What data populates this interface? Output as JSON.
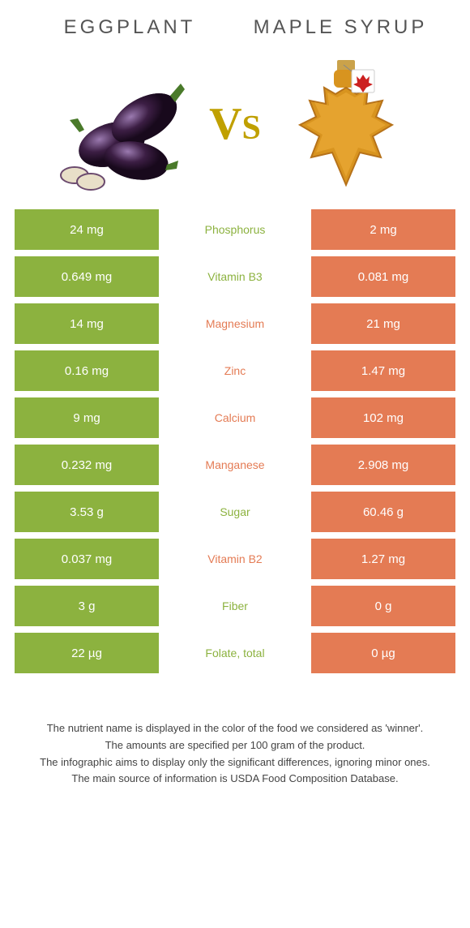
{
  "foodA": {
    "name": "EGGPLANT",
    "color": "#8cb23f"
  },
  "foodB": {
    "name": "MAPLE SYRUP",
    "color": "#e47b54"
  },
  "vs": "VS",
  "structure_type": "comparison-table",
  "colors": {
    "green": "#8cb23f",
    "orange": "#e47b54",
    "bg": "#ffffff",
    "text": "#444444",
    "vs": "#c0a000"
  },
  "rows": [
    {
      "label": "Phosphorus",
      "a": "24 mg",
      "b": "2 mg",
      "winner": "a"
    },
    {
      "label": "Vitamin B3",
      "a": "0.649 mg",
      "b": "0.081 mg",
      "winner": "a"
    },
    {
      "label": "Magnesium",
      "a": "14 mg",
      "b": "21 mg",
      "winner": "b"
    },
    {
      "label": "Zinc",
      "a": "0.16 mg",
      "b": "1.47 mg",
      "winner": "b"
    },
    {
      "label": "Calcium",
      "a": "9 mg",
      "b": "102 mg",
      "winner": "b"
    },
    {
      "label": "Manganese",
      "a": "0.232 mg",
      "b": "2.908 mg",
      "winner": "b"
    },
    {
      "label": "Sugar",
      "a": "3.53 g",
      "b": "60.46 g",
      "winner": "a"
    },
    {
      "label": "Vitamin B2",
      "a": "0.037 mg",
      "b": "1.27 mg",
      "winner": "b"
    },
    {
      "label": "Fiber",
      "a": "3 g",
      "b": "0 g",
      "winner": "a"
    },
    {
      "label": "Folate, total",
      "a": "22 µg",
      "b": "0 µg",
      "winner": "a"
    }
  ],
  "footnotes": [
    "The nutrient name is displayed in the color of the food we considered as 'winner'.",
    "The amounts are specified per 100 gram of the product.",
    "The infographic aims to display only the significant differences, ignoring minor ones.",
    "The main source of information is USDA Food Composition Database."
  ]
}
